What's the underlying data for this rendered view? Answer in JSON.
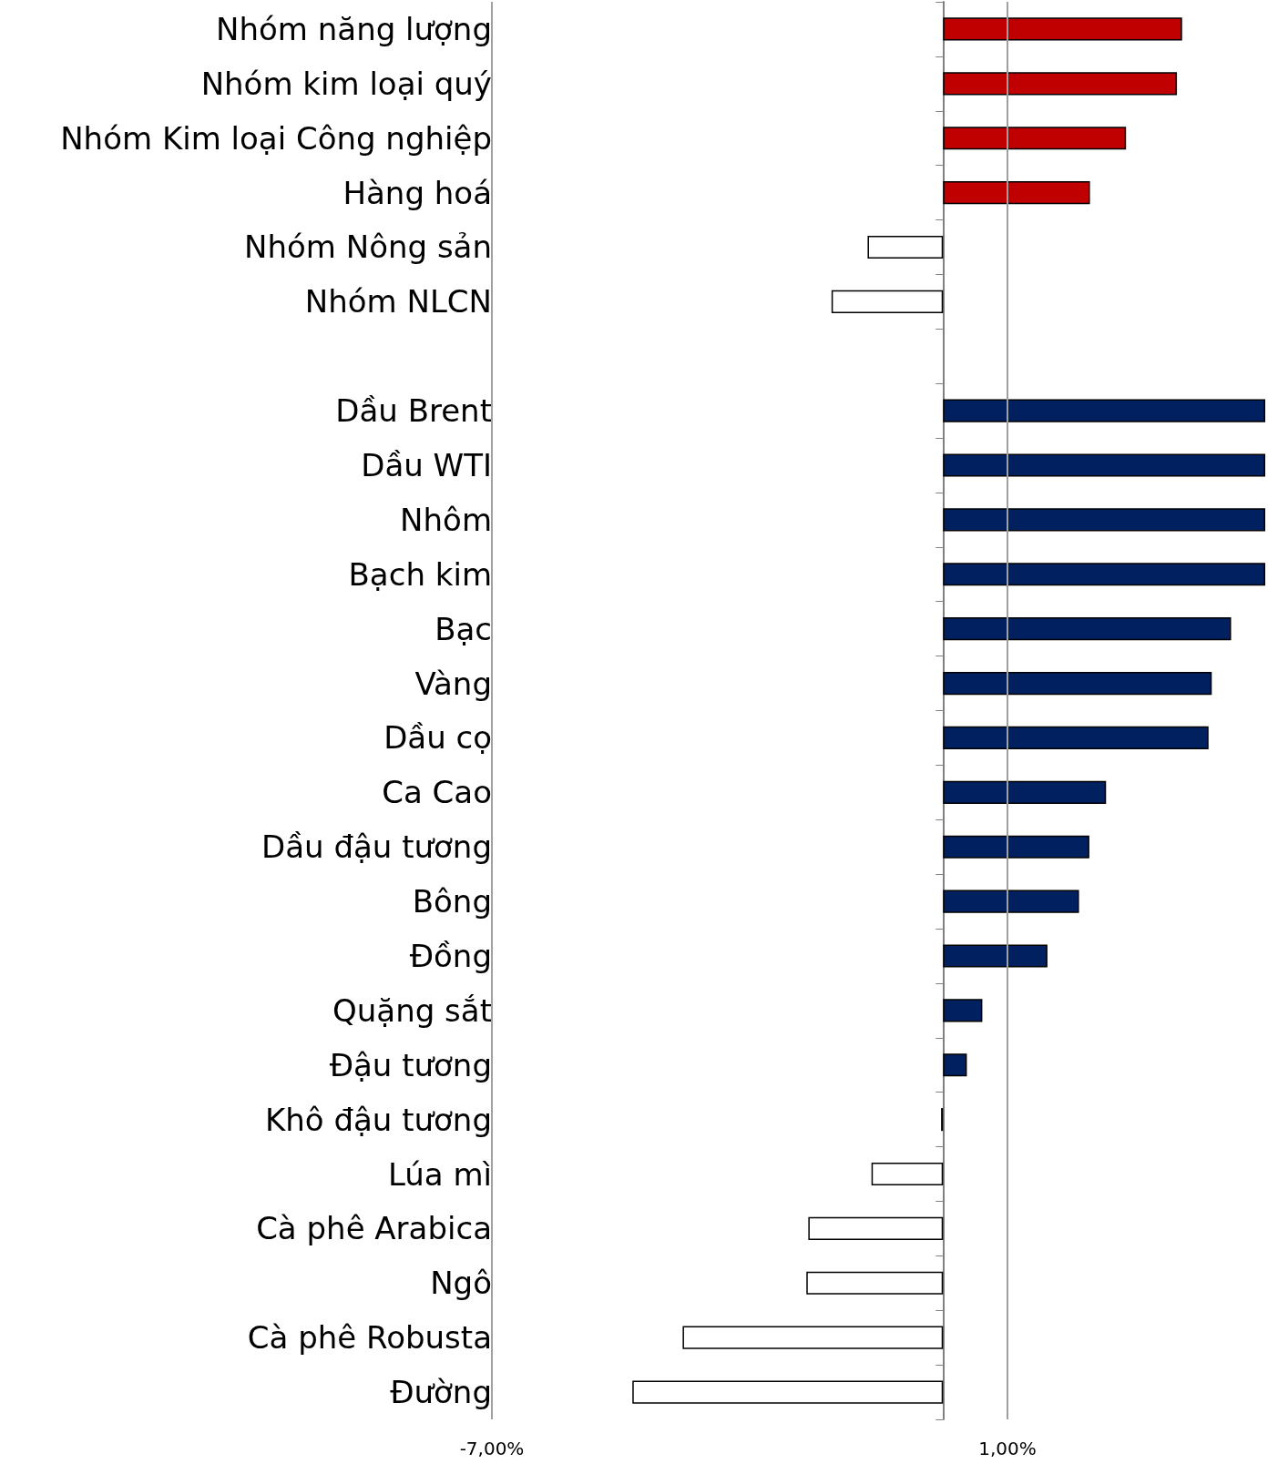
{
  "chart_data": {
    "type": "bar",
    "orientation": "horizontal",
    "categories": [
      "Nhóm năng lượng",
      "Nhóm kim loại quý",
      "Nhóm Kim loại Công nghiệp",
      "Hàng hoá",
      "Nhóm Nông sản",
      "Nhóm NLCN",
      null,
      "Dầu Brent",
      "Dầu WTI",
      "Nhôm",
      "Bạch kim",
      "Bạc",
      "Vàng",
      "Dầu cọ",
      "Ca Cao",
      "Dầu đậu tương",
      "Bông",
      "Đồng",
      "Quặng sắt",
      "Đậu tương",
      "Khô đậu tương",
      "Lúa mì",
      "Cà phê Arabica",
      "Ngô",
      "Cà phê Robusta",
      "Đường"
    ],
    "values": [
      3.71,
      3.63,
      2.84,
      2.28,
      -1.17,
      -1.73,
      null,
      5,
      5,
      5,
      5,
      4.47,
      4.17,
      4.12,
      2.53,
      2.27,
      2.11,
      1.62,
      0.61,
      0.37,
      -0.03,
      -1.11,
      -2.09,
      -2.12,
      -4.04,
      -4.82
    ],
    "colors": [
      "#c00000",
      "#c00000",
      "#c00000",
      "#c00000",
      "#ffffff",
      "#ffffff",
      null,
      "#002060",
      "#002060",
      "#002060",
      "#002060",
      "#002060",
      "#002060",
      "#002060",
      "#002060",
      "#002060",
      "#002060",
      "#002060",
      "#002060",
      "#002060",
      "#ffffff",
      "#ffffff",
      "#ffffff",
      "#ffffff",
      "#ffffff",
      "#ffffff"
    ],
    "xlim": [
      -7,
      5
    ],
    "xticks": [
      {
        "value": -7,
        "label": "-7,00%"
      },
      {
        "value": 1,
        "label": "1,00%"
      }
    ],
    "grid": "x"
  }
}
